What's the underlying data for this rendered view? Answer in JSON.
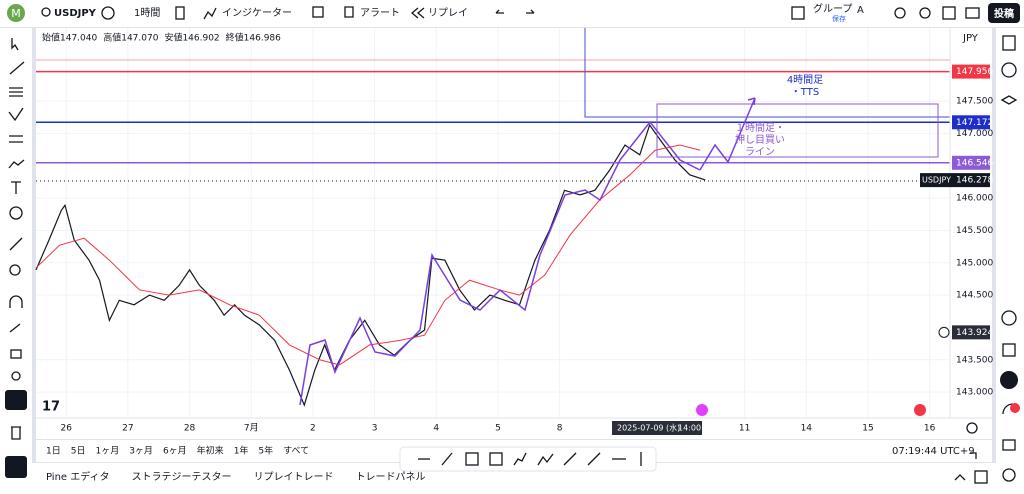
{
  "toolbar": {
    "symbol": "USDJPY",
    "interval": "1時間",
    "indicators": "インジケーター",
    "alert": "アラート",
    "replay": "リプレイ",
    "group": "グループ",
    "save": "保存",
    "font": "A",
    "publish": "投稿"
  },
  "legend": [
    "始値147.040",
    "高値147.070",
    "安値146.902",
    "終値146.986"
  ],
  "chart_data": {
    "type": "line",
    "currency": "JPY",
    "xlim": [
      -0.49,
      14.33
    ],
    "ylim": [
      142.6,
      148.63
    ],
    "categories": [
      "26",
      "27",
      "28",
      "7月",
      "2",
      "3",
      "4",
      "5",
      "8",
      null,
      null,
      "11",
      "14",
      "15",
      "16"
    ],
    "yticks": [
      {
        "value": 147.5,
        "label": "147.500"
      },
      {
        "value": 147,
        "label": "147.000"
      },
      {
        "value": 146,
        "label": "146.000"
      },
      {
        "value": 145.5,
        "label": "145.500"
      },
      {
        "value": 145,
        "label": "145.000"
      },
      {
        "value": 144.5,
        "label": "144.500"
      },
      {
        "value": 143.5,
        "label": "143.500"
      },
      {
        "value": 143,
        "label": "143.000"
      }
    ],
    "grid": true,
    "series": [
      {
        "name": "USDJPY",
        "color": "#131722",
        "x": [
          -0.49,
          -0.28,
          -0.08,
          -0.02,
          0.13,
          0.37,
          0.54,
          0.7,
          0.86,
          1.1,
          1.35,
          1.59,
          1.83,
          2.0,
          2.16,
          2.4,
          2.56,
          2.73,
          2.89,
          3.13,
          3.38,
          3.62,
          3.86,
          4.03,
          4.19,
          4.35,
          4.59,
          4.84,
          5.08,
          5.32,
          5.57,
          5.81,
          5.93,
          6.14,
          6.38,
          6.62,
          6.87,
          7.11,
          7.35,
          7.6,
          7.84,
          8.08,
          8.33,
          8.57,
          8.81,
          9.06,
          9.3,
          9.46,
          9.63,
          9.87,
          10.11,
          10.36
        ],
        "values": [
          144.89,
          145.35,
          145.81,
          145.89,
          145.35,
          145.04,
          144.73,
          144.11,
          144.42,
          144.35,
          144.5,
          144.42,
          144.65,
          144.89,
          144.65,
          144.42,
          144.19,
          144.35,
          144.19,
          144.04,
          143.8,
          143.34,
          142.8,
          143.34,
          143.73,
          143.34,
          143.8,
          144.11,
          143.73,
          143.57,
          143.8,
          143.96,
          145.07,
          145.04,
          144.58,
          144.27,
          144.5,
          144.42,
          144.35,
          145.04,
          145.51,
          146.12,
          146.05,
          146.12,
          146.43,
          146.82,
          146.67,
          147.13,
          146.9,
          146.59,
          146.36,
          146.28
        ]
      },
      {
        "color": "#f23645",
        "x": [
          -0.49,
          -0.11,
          0.29,
          0.7,
          1.19,
          1.67,
          2.16,
          2.65,
          3.13,
          3.62,
          4.11,
          4.43,
          4.92,
          5.41,
          5.81,
          6.14,
          6.54,
          7.03,
          7.35,
          7.76,
          8.17,
          8.65,
          9.14,
          9.55,
          9.95,
          10.28
        ],
        "values": [
          144.92,
          145.27,
          145.38,
          145.04,
          144.58,
          144.5,
          144.58,
          144.35,
          144.19,
          143.73,
          143.5,
          143.42,
          143.73,
          143.8,
          143.88,
          144.42,
          144.73,
          144.58,
          144.5,
          144.81,
          145.43,
          145.97,
          146.36,
          146.74,
          146.82,
          146.74
        ]
      }
    ],
    "price_lines": [
      {
        "value": 147.956,
        "label": "147.956",
        "color": "#f23645"
      },
      {
        "value": 147.172,
        "label": "147.172",
        "color": "#1e2fc8"
      },
      {
        "value": 146.546,
        "label": "146.546",
        "color": "#8e5bd6"
      }
    ],
    "last_price": {
      "symbol": "USDJPY",
      "value": 146.278,
      "label": "146.278"
    },
    "crosshair": {
      "value": 143.924,
      "label": "143.924",
      "date": "2025-07-09 (水)",
      "time": "14:00"
    },
    "annotations": [
      {
        "lines": [
          "4時間足",
          "・TTS"
        ],
        "color": "#1e2fc8"
      },
      {
        "lines": [
          "１時間足・",
          "押し目買い",
          "ライン"
        ],
        "color": "#8e5bd6"
      }
    ]
  },
  "range_bar": {
    "ranges": [
      "1日",
      "5日",
      "1ヶ月",
      "3ヶ月",
      "6ヶ月",
      "年初来",
      "1年",
      "5年",
      "すべて"
    ],
    "time": "07:19:44 UTC+9"
  },
  "bottom_tabs": [
    "Pine エディタ",
    "ストラテジーテスター",
    "リプレイトレード",
    "トレードパネル"
  ]
}
